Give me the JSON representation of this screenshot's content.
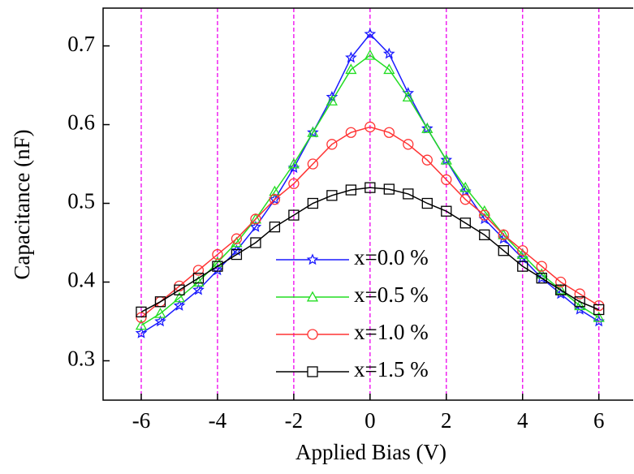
{
  "chart_data": {
    "type": "line",
    "x_label": "Applied Bias (V)",
    "y_label": "Capacitance (nF)",
    "x": [
      -6,
      -5.5,
      -5,
      -4.5,
      -4,
      -3.5,
      -3,
      -2.5,
      -2,
      -1.5,
      -1,
      -0.5,
      0,
      0.5,
      1,
      1.5,
      2,
      2.5,
      3,
      3.5,
      4,
      4.5,
      5,
      5.5,
      6
    ],
    "series": [
      {
        "name": "x=0.0 %",
        "color": "#1a1aff",
        "marker": "star",
        "values": [
          0.335,
          0.35,
          0.37,
          0.39,
          0.415,
          0.44,
          0.47,
          0.505,
          0.545,
          0.59,
          0.635,
          0.685,
          0.715,
          0.69,
          0.64,
          0.595,
          0.555,
          0.515,
          0.48,
          0.455,
          0.43,
          0.405,
          0.385,
          0.365,
          0.35
        ]
      },
      {
        "name": "x=0.5 %",
        "color": "#22dd22",
        "marker": "triangle",
        "values": [
          0.345,
          0.36,
          0.38,
          0.4,
          0.425,
          0.45,
          0.48,
          0.515,
          0.55,
          0.59,
          0.63,
          0.67,
          0.688,
          0.67,
          0.635,
          0.595,
          0.555,
          0.52,
          0.49,
          0.46,
          0.435,
          0.41,
          0.39,
          0.37,
          0.355
        ]
      },
      {
        "name": "x=1.0 %",
        "color": "#ff3333",
        "marker": "circle",
        "values": [
          0.355,
          0.375,
          0.395,
          0.415,
          0.435,
          0.455,
          0.48,
          0.505,
          0.525,
          0.55,
          0.575,
          0.59,
          0.597,
          0.59,
          0.575,
          0.555,
          0.53,
          0.505,
          0.485,
          0.46,
          0.44,
          0.42,
          0.4,
          0.385,
          0.37
        ]
      },
      {
        "name": "x=1.5 %",
        "color": "#000000",
        "marker": "square",
        "values": [
          0.362,
          0.375,
          0.39,
          0.405,
          0.42,
          0.435,
          0.45,
          0.47,
          0.485,
          0.5,
          0.51,
          0.517,
          0.52,
          0.518,
          0.512,
          0.5,
          0.49,
          0.475,
          0.46,
          0.44,
          0.42,
          0.405,
          0.39,
          0.375,
          0.365
        ]
      }
    ],
    "xlim": [
      -7,
      6.9
    ],
    "xticks": [
      -6,
      -4,
      -2,
      0,
      2,
      4,
      6
    ],
    "ylim": [
      0.25,
      0.748
    ],
    "yticks": [
      0.3,
      0.4,
      0.5,
      0.6,
      0.7
    ],
    "grid": "x",
    "grid_color": "#ee00ee",
    "legend": "lower center"
  }
}
